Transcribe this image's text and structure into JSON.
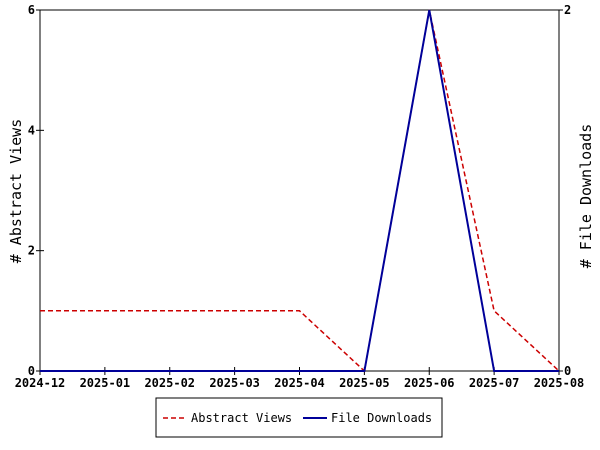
{
  "chart_data": {
    "type": "line",
    "x": [
      "2024-12",
      "2025-01",
      "2025-02",
      "2025-03",
      "2025-04",
      "2025-05",
      "2025-06",
      "2025-07",
      "2025-08"
    ],
    "series": [
      {
        "name": "Abstract Views",
        "axis": "left",
        "values": [
          1,
          1,
          1,
          1,
          1,
          0,
          6,
          1,
          0
        ],
        "color": "#cc0000",
        "style": "dashed"
      },
      {
        "name": "File Downloads",
        "axis": "right",
        "values": [
          0,
          0,
          0,
          0,
          0,
          0,
          2,
          0,
          0
        ],
        "color": "#000099",
        "style": "solid"
      }
    ],
    "ylabel": "# Abstract Views",
    "y2label": "# File Downloads",
    "ylim": [
      0,
      6
    ],
    "y2lim": [
      0,
      2
    ],
    "yticks": [
      0,
      2,
      4,
      6
    ],
    "y2ticks": [
      0,
      2
    ],
    "grid": false,
    "legend_position": "bottom-center"
  }
}
